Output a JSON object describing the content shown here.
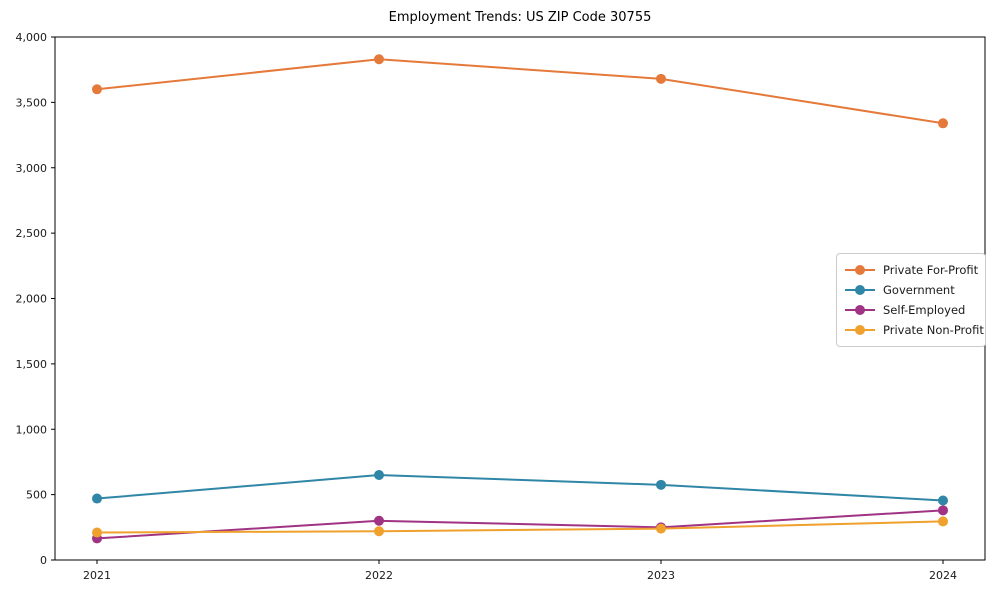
{
  "title": "Employment Trends: US ZIP Code 30755",
  "colors": {
    "background": "#ffffff",
    "axis": "#000000",
    "tick_text": "#1a1a1a",
    "legend_border": "#cccccc"
  },
  "chart_data": {
    "type": "line",
    "title": "Employment Trends: US ZIP Code 30755",
    "x": [
      "2021",
      "2022",
      "2023",
      "2024"
    ],
    "series": [
      {
        "name": "Private For-Profit",
        "color": "#e4793a",
        "values": [
          3600,
          3830,
          3680,
          3340
        ]
      },
      {
        "name": "Government",
        "color": "#2f86a6",
        "values": [
          470,
          650,
          575,
          455
        ]
      },
      {
        "name": "Self-Employed",
        "color": "#a03384",
        "values": [
          165,
          300,
          250,
          380
        ]
      },
      {
        "name": "Private Non-Profit",
        "color": "#f0a02d",
        "values": [
          210,
          220,
          240,
          295
        ]
      }
    ],
    "xlabel": "",
    "ylabel": "",
    "ylim": [
      0,
      4000
    ],
    "yticks": [
      0,
      500,
      1000,
      1500,
      2000,
      2500,
      3000,
      3500,
      4000
    ],
    "ytick_labels": [
      "0",
      "500",
      "1,000",
      "1,500",
      "2,000",
      "2,500",
      "3,000",
      "3,500",
      "4,000"
    ],
    "grid": false,
    "marker": "circle",
    "legend_position": "center right"
  }
}
